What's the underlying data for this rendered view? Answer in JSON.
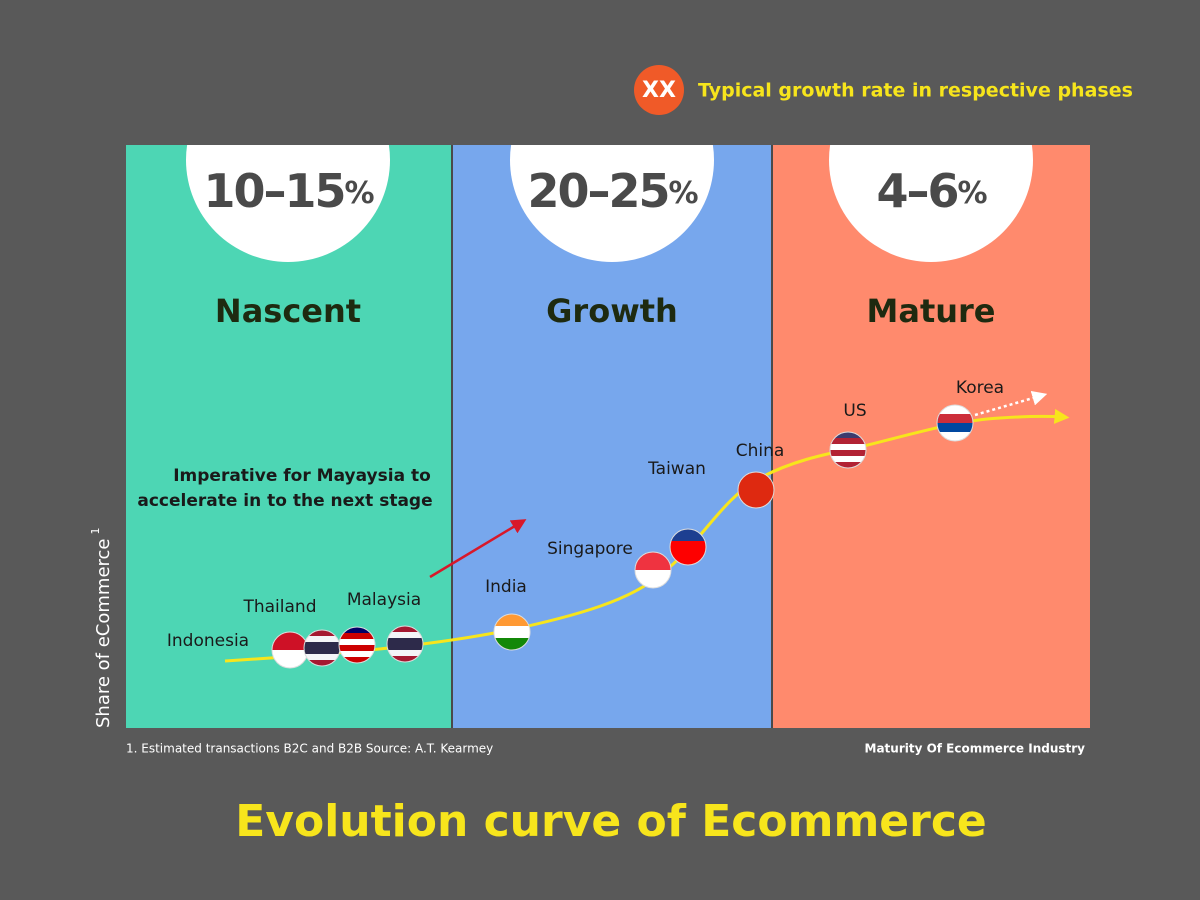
{
  "title": "Evolution curve of Ecommerce",
  "legend": {
    "marker": "XX",
    "text": "Typical growth rate in respective phases"
  },
  "phases": [
    {
      "rate": "10–15",
      "rate_unit": "%",
      "name": "Nascent"
    },
    {
      "rate": "20–25",
      "rate_unit": "%",
      "name": "Growth"
    },
    {
      "rate": "4–6",
      "rate_unit": "%",
      "name": "Mature"
    }
  ],
  "annotation": [
    "Imperative for Mayaysia to",
    "accelerate in to the next stage"
  ],
  "countries": [
    "Indonesia",
    "Thailand",
    "Malaysia",
    "India",
    "Singapore",
    "Taiwan",
    "China",
    "US",
    "Korea"
  ],
  "y_axis_label": {
    "text": "Share of eCommerce",
    "footnote_mark": "1"
  },
  "x_axis_label": "Maturity Of Ecommerce Industry",
  "footnote": "1. Estimated transactions B2C and B2B Source: A.T. Kearmey"
}
